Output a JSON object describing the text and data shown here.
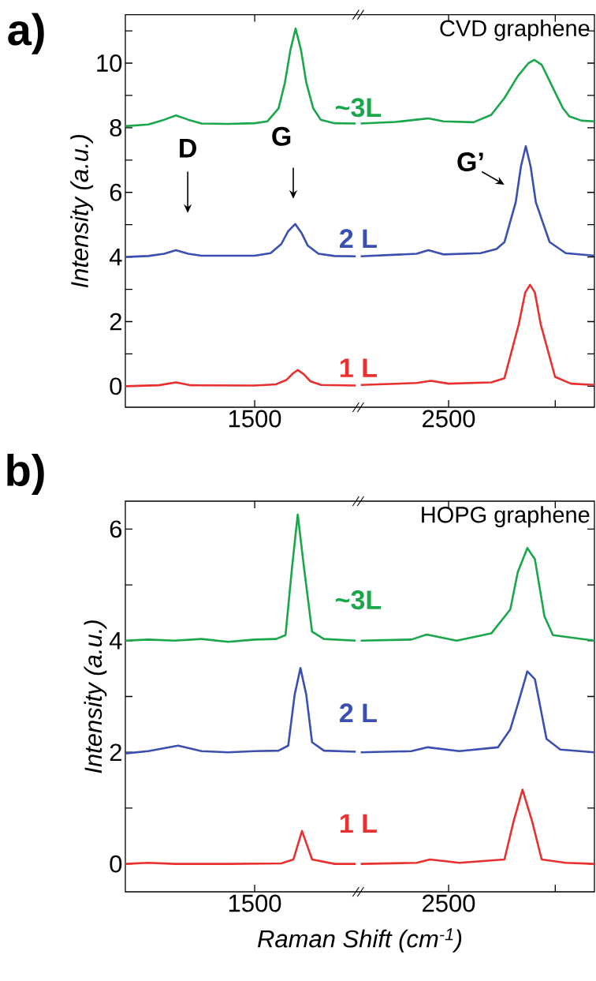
{
  "chart_data": [
    {
      "type": "line",
      "title": "a)",
      "ylabel": "Intensity (a.u.)",
      "xlim": [
        833,
        3252
      ],
      "xticks": [
        1500,
        2500,
        {
          "value": 3050,
          "label": null
        }
      ],
      "ylim": [
        -0.65,
        11.5
      ],
      "yticks": [
        0,
        {
          "value": 1,
          "label": null
        },
        2,
        {
          "value": 3,
          "label": null
        },
        4,
        {
          "value": 5,
          "label": null
        },
        6,
        {
          "value": 7,
          "label": null
        },
        8,
        {
          "value": 9,
          "label": null
        },
        10,
        {
          "value": 11,
          "label": null
        }
      ],
      "annotations": [
        "CVD graphene",
        "D",
        "G",
        "G’"
      ],
      "series": [
        {
          "name": "~3L",
          "color": "#1aa64a",
          "x": [
            833,
            951,
            1034,
            1094,
            1157,
            1226,
            1363,
            1500,
            1566,
            1623,
            1656,
            1684,
            1711,
            1739,
            1766,
            1802,
            1840,
            1912,
            2021,
            2034,
            2047,
            2226,
            2335,
            2396,
            2473,
            2629,
            2720,
            2788,
            2857,
            2912,
            2942,
            2980,
            3049,
            3090,
            3123,
            3186,
            3252
          ],
          "values": [
            8.05,
            8.1,
            8.25,
            8.38,
            8.25,
            8.13,
            8.12,
            8.14,
            8.2,
            8.6,
            9.4,
            10.4,
            11.07,
            10.4,
            9.4,
            8.6,
            8.25,
            8.14,
            8.13,
            null,
            8.13,
            8.18,
            8.25,
            8.29,
            8.2,
            8.17,
            8.4,
            8.92,
            9.6,
            10.0,
            10.1,
            9.95,
            9.1,
            8.6,
            8.35,
            8.22,
            8.2
          ]
        },
        {
          "name": "2 L",
          "color": "#3a4fb0",
          "x": [
            833,
            951,
            1034,
            1094,
            1157,
            1226,
            1500,
            1582,
            1637,
            1673,
            1709,
            1741,
            1774,
            1829,
            1912,
            2021,
            2034,
            2047,
            2335,
            2396,
            2473,
            2665,
            2747,
            2788,
            2846,
            2873,
            2898,
            2923,
            2950,
            3021,
            3104,
            3252
          ],
          "values": [
            4.0,
            4.03,
            4.1,
            4.21,
            4.1,
            4.04,
            4.04,
            4.12,
            4.4,
            4.8,
            5.02,
            4.75,
            4.35,
            4.1,
            4.03,
            4.02,
            null,
            4.02,
            4.1,
            4.21,
            4.08,
            4.12,
            4.25,
            4.46,
            5.69,
            6.8,
            7.43,
            6.8,
            5.69,
            4.46,
            4.12,
            4.04
          ]
        },
        {
          "name": "1 L",
          "color": "#e8302e",
          "x": [
            833,
            1006,
            1094,
            1171,
            1500,
            1610,
            1665,
            1698,
            1722,
            1752,
            1788,
            1843,
            2021,
            2034,
            2047,
            2335,
            2409,
            2500,
            2720,
            2788,
            2862,
            2895,
            2920,
            2945,
            2975,
            3049,
            3131,
            3252
          ],
          "values": [
            0.0,
            0.03,
            0.12,
            0.03,
            0.02,
            0.06,
            0.2,
            0.4,
            0.5,
            0.38,
            0.15,
            0.04,
            0.02,
            null,
            0.04,
            0.1,
            0.17,
            0.08,
            0.12,
            0.25,
            1.92,
            2.9,
            3.14,
            2.9,
            1.92,
            0.29,
            0.08,
            0.04
          ]
        }
      ]
    },
    {
      "type": "line",
      "title": "b)",
      "ylabel": "Intensity (a.u.)",
      "xlabel": "Raman Shift (cm$^{-1}$)",
      "xlim": [
        833,
        3252
      ],
      "xticks": [
        1500,
        2500,
        {
          "value": 3050,
          "label": null
        }
      ],
      "ylim": [
        -0.5,
        6.5
      ],
      "yticks": [
        0,
        {
          "value": 1,
          "label": null
        },
        2,
        {
          "value": 3,
          "label": null
        },
        4,
        {
          "value": 5,
          "label": null
        },
        6
      ],
      "annotations": [
        "HOPG graphene"
      ],
      "series": [
        {
          "name": "~3L",
          "color": "#1aa64a",
          "x": [
            833,
            951,
            1088,
            1226,
            1363,
            1500,
            1610,
            1659,
            1692,
            1722,
            1755,
            1796,
            1857,
            2021,
            2034,
            2047,
            2308,
            2387,
            2541,
            2720,
            2818,
            2857,
            2906,
            2945,
            2994,
            3038,
            3252
          ],
          "values": [
            4.0,
            4.02,
            4.0,
            4.03,
            3.98,
            4.02,
            4.03,
            4.1,
            5.29,
            6.26,
            5.29,
            4.16,
            4.03,
            4.0,
            null,
            4.0,
            4.02,
            4.11,
            4.0,
            4.13,
            4.56,
            5.23,
            5.66,
            5.46,
            4.44,
            4.1,
            4.0
          ]
        },
        {
          "name": "2 L",
          "color": "#3a4fb0",
          "x": [
            833,
            951,
            1105,
            1226,
            1363,
            1500,
            1623,
            1673,
            1706,
            1736,
            1766,
            1796,
            1857,
            2021,
            2034,
            2047,
            2308,
            2393,
            2555,
            2755,
            2818,
            2857,
            2906,
            2945,
            3005,
            3076,
            3252
          ],
          "values": [
            1.98,
            2.02,
            2.12,
            2.02,
            2.0,
            2.02,
            2.03,
            2.12,
            3.03,
            3.51,
            3.03,
            2.18,
            2.03,
            2.01,
            null,
            2.0,
            2.02,
            2.09,
            2.02,
            2.09,
            2.41,
            2.86,
            3.45,
            3.31,
            2.24,
            2.05,
            2.0
          ]
        },
        {
          "name": "1 L",
          "color": "#e8302e",
          "x": [
            833,
            951,
            1088,
            1363,
            1637,
            1700,
            1744,
            1796,
            1912,
            2021,
            2034,
            2047,
            2335,
            2404,
            2555,
            2788,
            2835,
            2881,
            2931,
            2980,
            3104,
            3252
          ],
          "values": [
            0.0,
            0.02,
            0.0,
            0.0,
            0.01,
            0.08,
            0.59,
            0.08,
            0.0,
            0.0,
            null,
            0.0,
            0.02,
            0.08,
            0.02,
            0.08,
            0.76,
            1.33,
            0.76,
            0.08,
            0.02,
            0.0
          ]
        }
      ]
    }
  ]
}
